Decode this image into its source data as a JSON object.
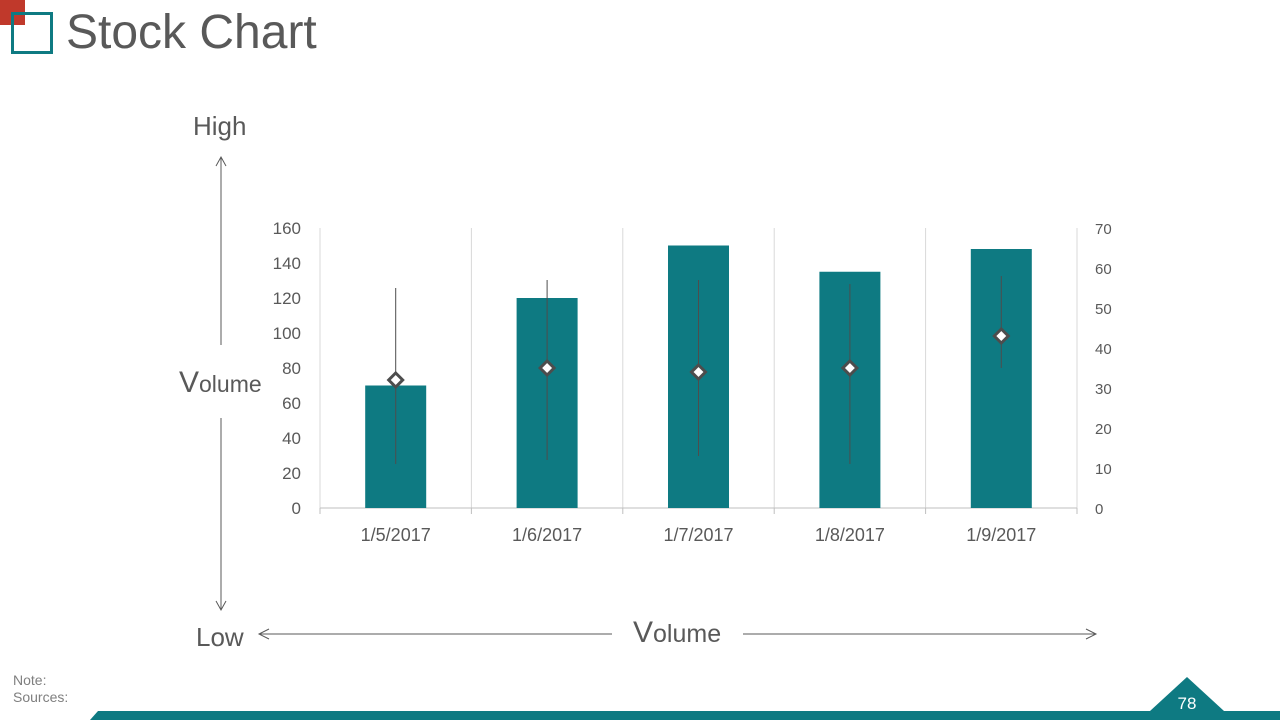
{
  "slide": {
    "title": "Stock Chart",
    "axis_words": {
      "high": "High",
      "low": "Low",
      "volume_left": "olume",
      "volume_left_initial": "V",
      "volume_bottom": "olume",
      "volume_bottom_initial": "V"
    },
    "note_label": "Note:",
    "sources_label": "Sources:",
    "page_number": "78",
    "colors": {
      "accent": "#0e7a82",
      "red": "#c0392b",
      "text": "#595959",
      "marker": "#4d4d4d"
    }
  },
  "chart_data": {
    "type": "bar",
    "subtype": "volume-high-low-close stock chart",
    "categories": [
      "1/5/2017",
      "1/6/2017",
      "1/7/2017",
      "1/8/2017",
      "1/9/2017"
    ],
    "series": [
      {
        "role": "volume",
        "axis": "left",
        "values": [
          70,
          120,
          150,
          135,
          148
        ]
      },
      {
        "role": "high",
        "axis": "right",
        "values": [
          55,
          57,
          57,
          56,
          58
        ]
      },
      {
        "role": "low",
        "axis": "right",
        "values": [
          11,
          12,
          13,
          11,
          35
        ]
      },
      {
        "role": "close",
        "axis": "right",
        "values": [
          32,
          35,
          34,
          35,
          43
        ]
      }
    ],
    "y_left": {
      "ylim": [
        0,
        160
      ],
      "ticks": [
        "0",
        "20",
        "40",
        "60",
        "80",
        "100",
        "120",
        "140",
        "160"
      ]
    },
    "y_right": {
      "ylim": [
        0,
        70
      ],
      "ticks": [
        "0",
        "10",
        "20",
        "30",
        "40",
        "50",
        "60",
        "70"
      ]
    },
    "grid": "vertical category separators"
  }
}
